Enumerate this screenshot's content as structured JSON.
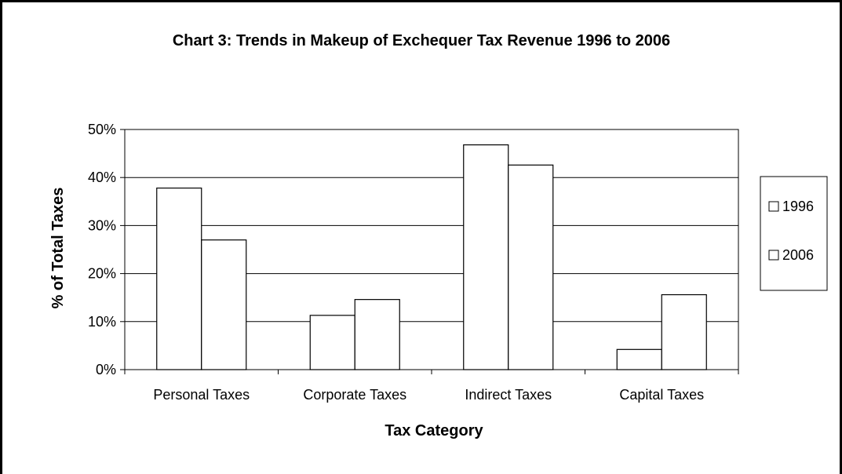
{
  "chart_data": {
    "type": "bar",
    "title": "Chart 3: Trends in Makeup of Exchequer Tax Revenue 1996 to 2006",
    "xlabel": "Tax Category",
    "ylabel": "% of Total Taxes",
    "categories": [
      "Personal Taxes",
      "Corporate Taxes",
      "Indirect Taxes",
      "Capital Taxes"
    ],
    "series": [
      {
        "name": "1996",
        "values": [
          37.8,
          11.3,
          46.8,
          4.2
        ],
        "fill": "#ffffff"
      },
      {
        "name": "2006",
        "values": [
          27.0,
          14.6,
          42.6,
          15.6
        ],
        "fill": "#ffffff"
      }
    ],
    "ylim": [
      0,
      50
    ],
    "yticks": [
      0,
      10,
      20,
      30,
      40,
      50
    ],
    "ytick_labels": [
      "0%",
      "10%",
      "20%",
      "30%",
      "40%",
      "50%"
    ],
    "grid": true,
    "legend_position": "right",
    "colors": {
      "bar_stroke": "#000000",
      "grid": "#000000",
      "frame": "#000000"
    }
  }
}
